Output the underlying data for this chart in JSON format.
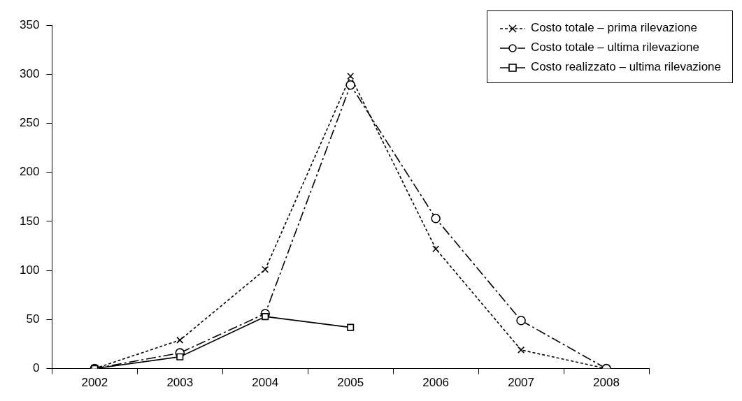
{
  "chart_data": {
    "type": "line",
    "categories": [
      "2002",
      "2003",
      "2004",
      "2005",
      "2006",
      "2007",
      "2008"
    ],
    "series": [
      {
        "name": "Costo totale – prima rilevazione",
        "color": "#000000",
        "marker": "cross",
        "line_style": "dotted",
        "values": [
          0,
          29,
          101,
          298,
          122,
          19,
          0
        ]
      },
      {
        "name": "Costo totale – ultima rilevazione",
        "color": "#010101",
        "marker": "circle",
        "line_style": "dashed",
        "values": [
          0,
          16,
          56,
          289,
          153,
          49,
          0
        ]
      },
      {
        "name": "Costo realizzato – ultima rilevazione",
        "color": "#020202",
        "marker": "square",
        "line_style": "solid",
        "values": [
          0,
          12,
          53,
          42,
          null,
          null,
          null
        ]
      }
    ],
    "ylim": [
      0,
      350
    ],
    "yticks": [
      0,
      50,
      100,
      150,
      200,
      250,
      300,
      350
    ],
    "grid": false,
    "legend": "top right"
  }
}
